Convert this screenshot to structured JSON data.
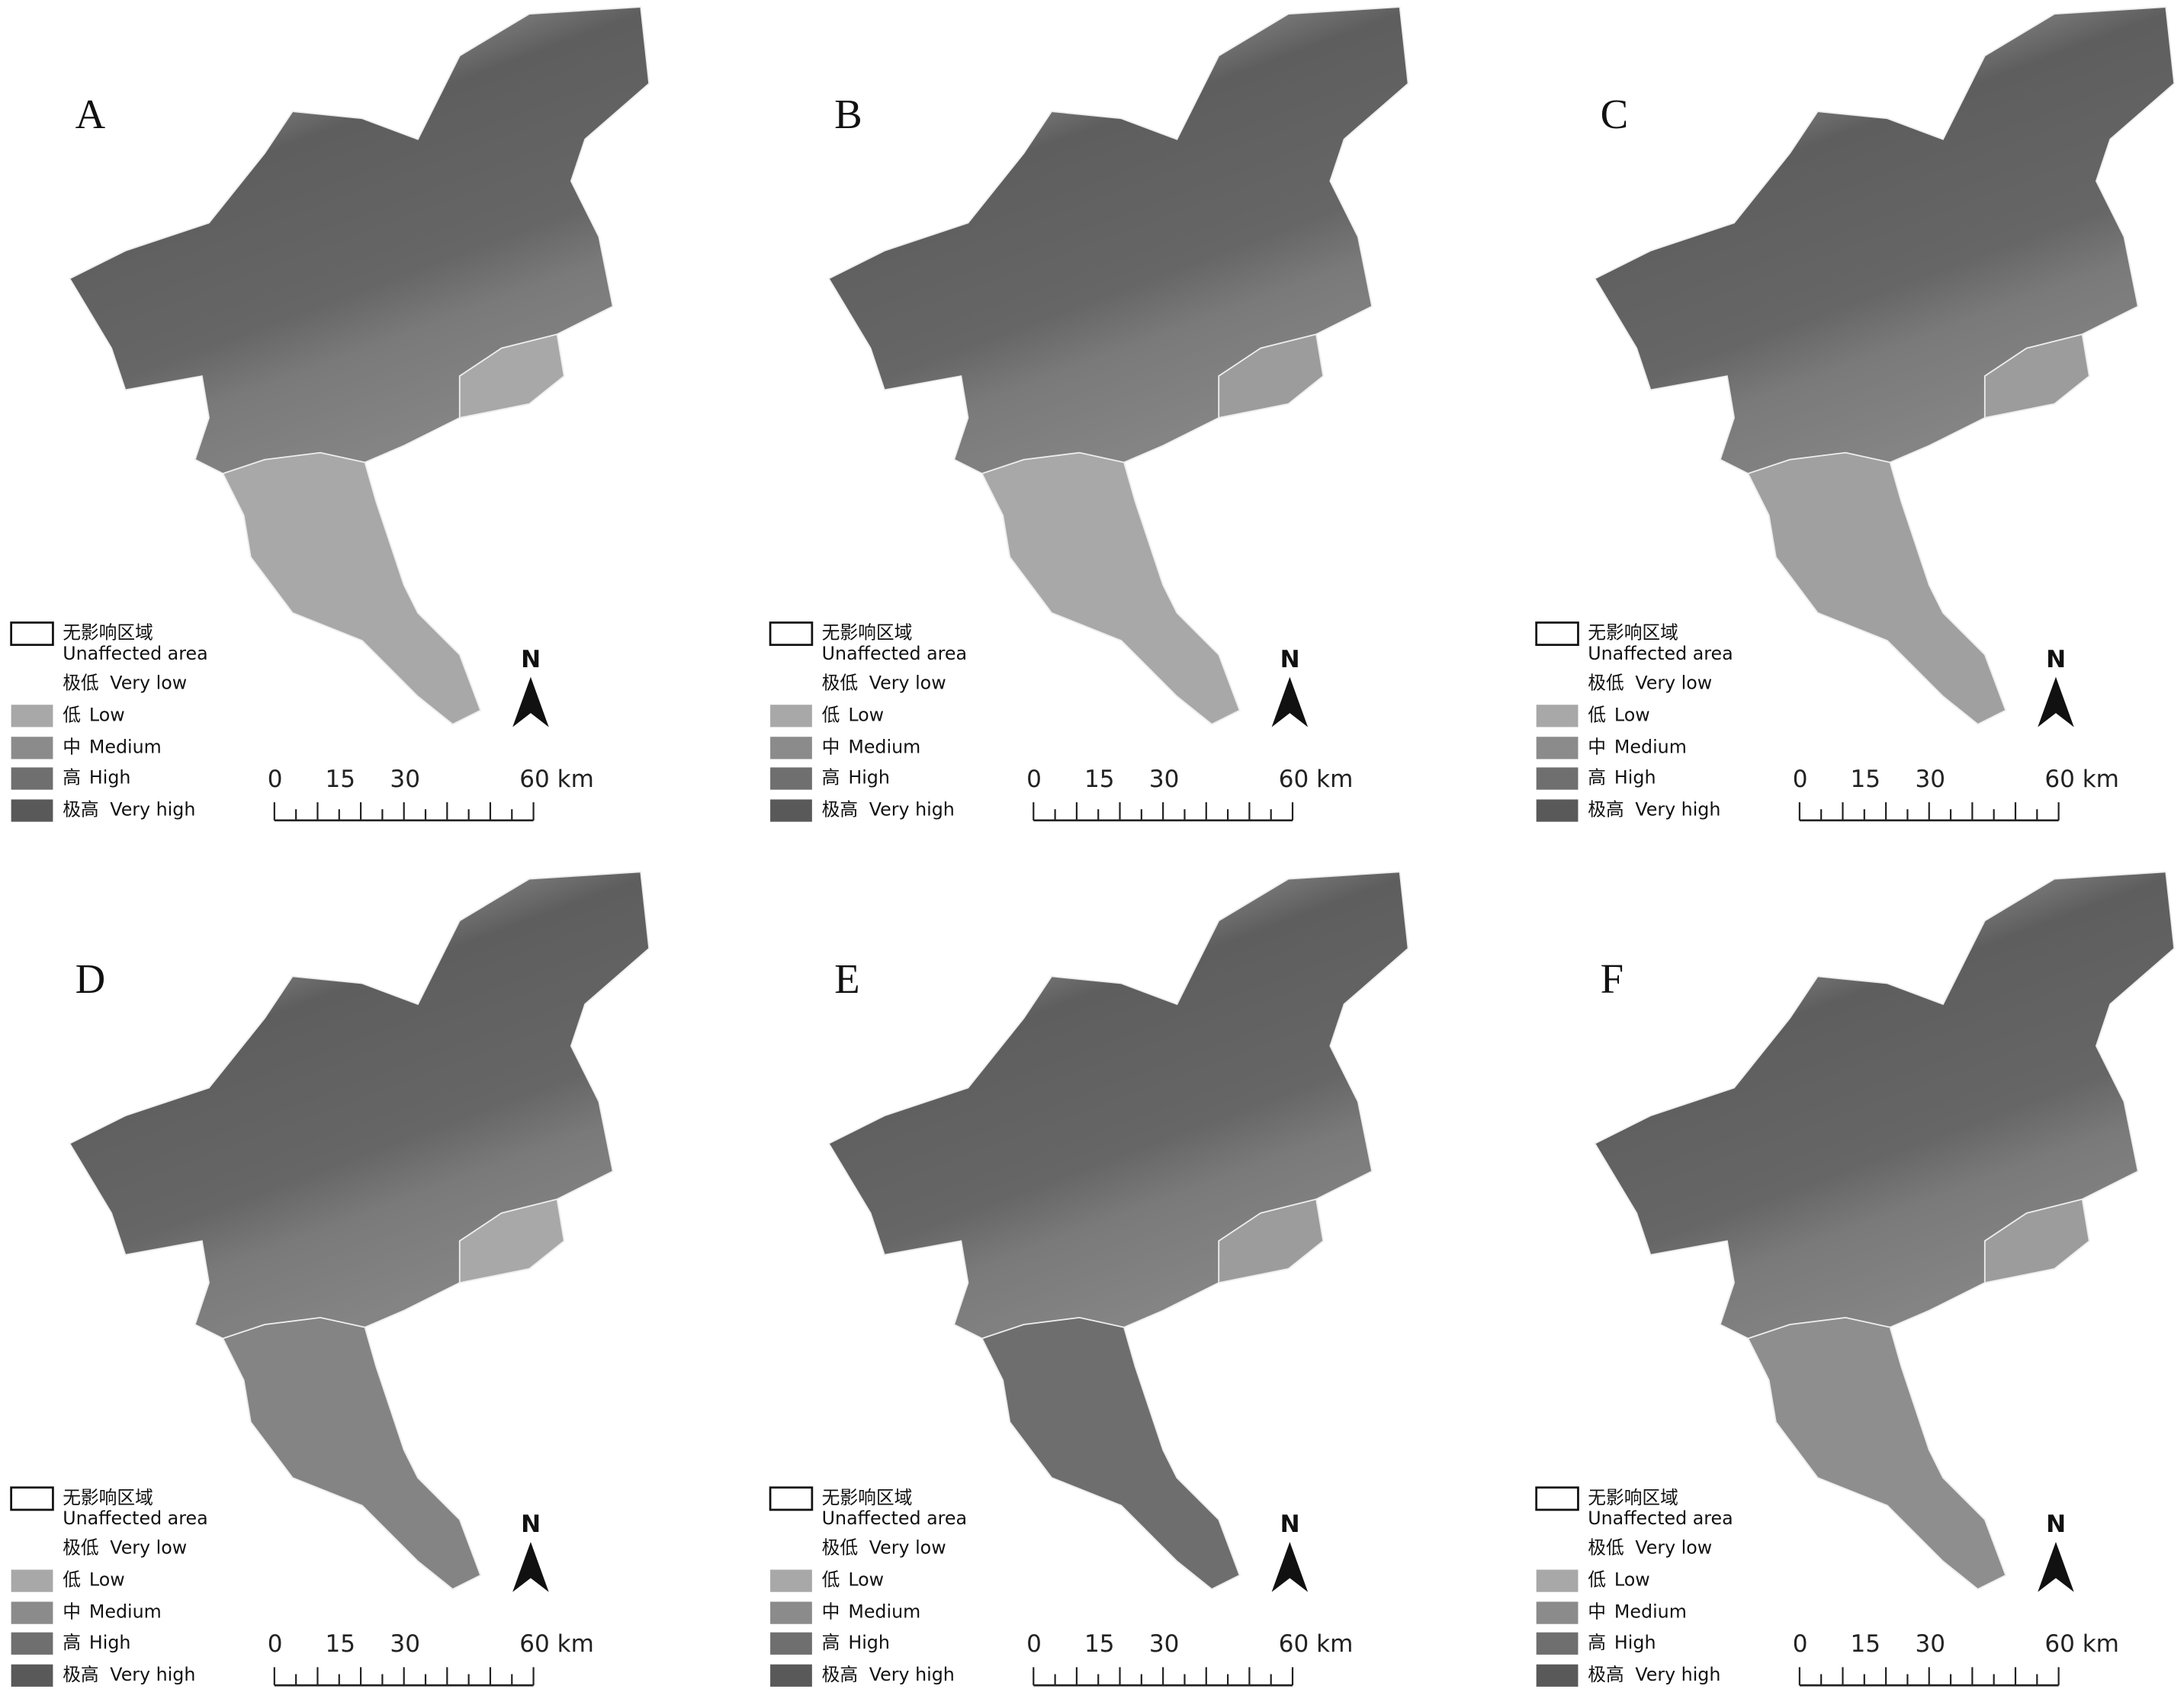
{
  "panels": [
    {
      "label": "A"
    },
    {
      "label": "B"
    },
    {
      "label": "C"
    },
    {
      "label": "D"
    },
    {
      "label": "E"
    },
    {
      "label": "F"
    }
  ],
  "legend": {
    "items": [
      {
        "zh": "无影响区域",
        "en": "Unaffected area",
        "color": "#ffffff",
        "outlined": true
      },
      {
        "zh": "极低",
        "en": "Very low",
        "color": "#ffffff",
        "outlined": false
      },
      {
        "zh": "低",
        "en": "Low",
        "color": "#a8a8a8",
        "outlined": false
      },
      {
        "zh": "中",
        "en": "Medium",
        "color": "#8b8b8b",
        "outlined": false
      },
      {
        "zh": "高",
        "en": "High",
        "color": "#6f6f6f",
        "outlined": false
      },
      {
        "zh": "极高",
        "en": "Very high",
        "color": "#595959",
        "outlined": false
      }
    ]
  },
  "north": "N",
  "scale_bar": {
    "ticks": [
      0,
      15,
      30,
      {
        "value": 60,
        "label": "60 km"
      }
    ]
  }
}
